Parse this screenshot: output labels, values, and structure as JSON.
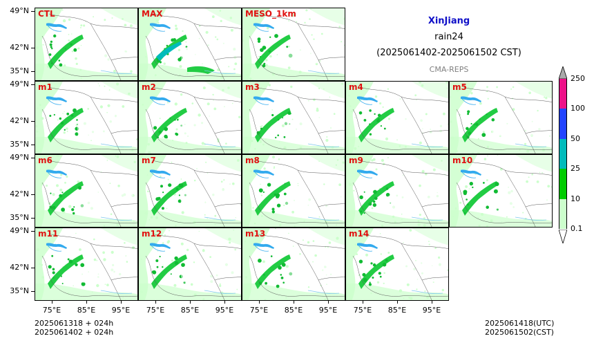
{
  "header": {
    "region": "XinJiang",
    "variable": "rain24",
    "period": "(2025061402-2025061502 CST)",
    "system": "CMA-REPS"
  },
  "panels": [
    {
      "label": "CTL"
    },
    {
      "label": "MAX"
    },
    {
      "label": "MESO_1km"
    },
    {
      "label": "m1"
    },
    {
      "label": "m2"
    },
    {
      "label": "m3"
    },
    {
      "label": "m4"
    },
    {
      "label": "m5"
    },
    {
      "label": "m6"
    },
    {
      "label": "m7"
    },
    {
      "label": "m8"
    },
    {
      "label": "m9"
    },
    {
      "label": "m10"
    },
    {
      "label": "m11"
    },
    {
      "label": "m12"
    },
    {
      "label": "m13"
    },
    {
      "label": "m14"
    }
  ],
  "axes": {
    "lat_ticks": [
      "49°N",
      "42°N",
      "35°N"
    ],
    "lon_ticks": [
      "75°E",
      "85°E",
      "95°E"
    ]
  },
  "colorbar": {
    "levels": [
      "0.1",
      "10",
      "25",
      "50",
      "100",
      "250"
    ],
    "colors": [
      "#ccffcc",
      "#00cc00",
      "#00bbbb",
      "#2244ff",
      "#ee1188"
    ],
    "extend_colors": [
      "#ffffff",
      "#aaaaaa"
    ]
  },
  "footer": {
    "init_line1": "2025061318  +  024h",
    "init_line2": "2025061402  +  024h",
    "valid_utc": "2025061418(UTC)",
    "valid_cst": "2025061502(CST)"
  }
}
